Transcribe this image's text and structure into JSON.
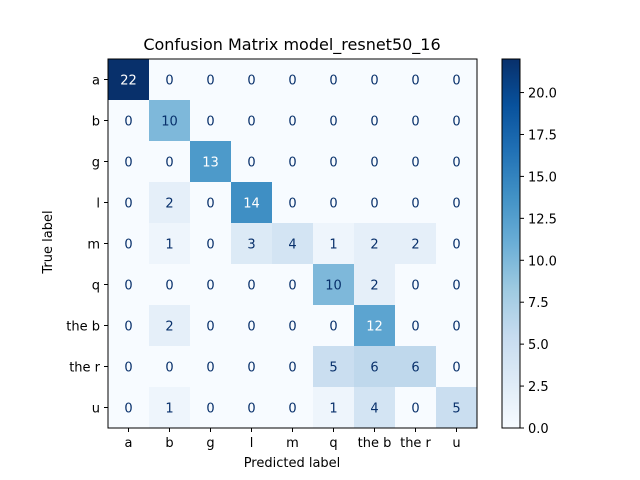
{
  "chart_data": {
    "type": "heatmap",
    "title": "Confusion Matrix model_resnet50_16",
    "xlabel": "Predicted label",
    "ylabel": "True label",
    "x_categories": [
      "a",
      "b",
      "g",
      "l",
      "m",
      "q",
      "the b",
      "the r",
      "u"
    ],
    "y_categories": [
      "a",
      "b",
      "g",
      "l",
      "m",
      "q",
      "the b",
      "the r",
      "u"
    ],
    "values": [
      [
        22,
        0,
        0,
        0,
        0,
        0,
        0,
        0,
        0
      ],
      [
        0,
        10,
        0,
        0,
        0,
        0,
        0,
        0,
        0
      ],
      [
        0,
        0,
        13,
        0,
        0,
        0,
        0,
        0,
        0
      ],
      [
        0,
        2,
        0,
        14,
        0,
        0,
        0,
        0,
        0
      ],
      [
        0,
        1,
        0,
        3,
        4,
        1,
        2,
        2,
        0
      ],
      [
        0,
        0,
        0,
        0,
        0,
        10,
        2,
        0,
        0
      ],
      [
        0,
        2,
        0,
        0,
        0,
        0,
        12,
        0,
        0
      ],
      [
        0,
        0,
        0,
        0,
        0,
        5,
        6,
        6,
        0
      ],
      [
        0,
        1,
        0,
        0,
        0,
        1,
        4,
        0,
        5
      ]
    ],
    "colormap": "Blues",
    "colorbar": {
      "range": [
        0,
        22
      ],
      "ticks": [
        0.0,
        2.5,
        5.0,
        7.5,
        10.0,
        12.5,
        15.0,
        17.5,
        20.0
      ],
      "tick_labels": [
        "0.0",
        "2.5",
        "5.0",
        "7.5",
        "10.0",
        "12.5",
        "15.0",
        "17.5",
        "20.0"
      ]
    },
    "grid": false
  }
}
